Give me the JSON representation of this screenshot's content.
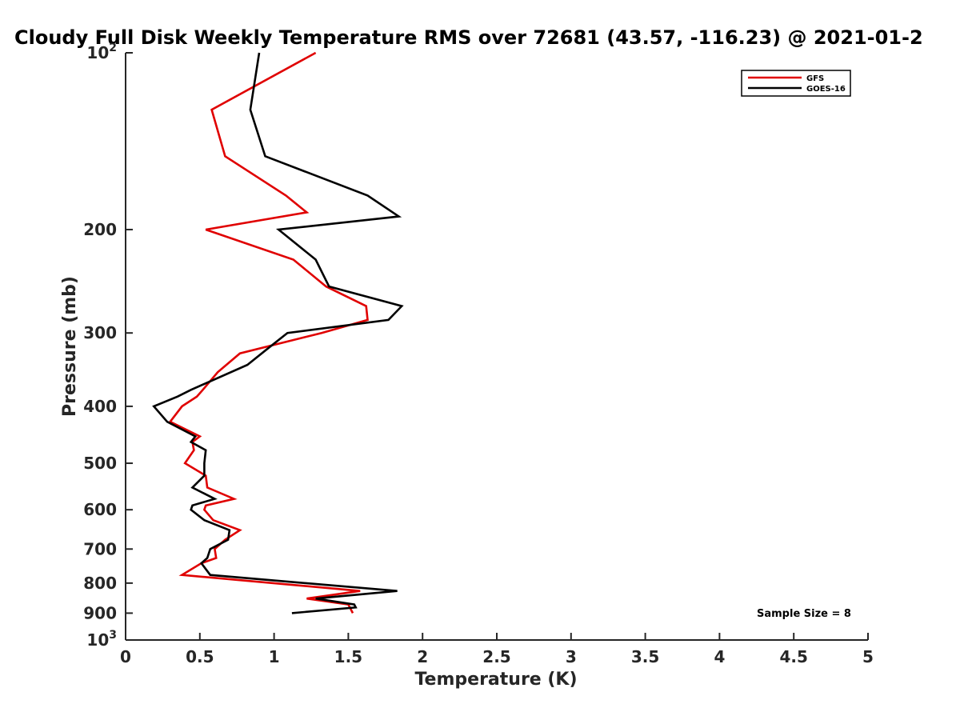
{
  "chart_data": {
    "type": "line",
    "title": "Cloudy Full Disk Weekly Temperature RMS over 72681 (43.57, -116.23) @ 2021-01-2",
    "xlabel": "Temperature (K)",
    "ylabel": "Pressure (mb)",
    "xlim": [
      0,
      5
    ],
    "ylim": [
      100,
      1000
    ],
    "yscale": "log",
    "y_reversed": true,
    "x_ticks": [
      "0",
      "0.5",
      "1",
      "1.5",
      "2",
      "2.5",
      "3",
      "3.5",
      "4",
      "4.5",
      "5"
    ],
    "y_ticks": [
      {
        "value": 100,
        "base": "10",
        "exp": "2"
      },
      {
        "value": 200,
        "label": "200"
      },
      {
        "value": 300,
        "label": "300"
      },
      {
        "value": 400,
        "label": "400"
      },
      {
        "value": 500,
        "label": "500"
      },
      {
        "value": 600,
        "label": "600"
      },
      {
        "value": 700,
        "label": "700"
      },
      {
        "value": 800,
        "label": "800"
      },
      {
        "value": 900,
        "label": "900"
      },
      {
        "value": 1000,
        "base": "10",
        "exp": "3"
      }
    ],
    "grid": false,
    "legend_position": "top-right",
    "annotation": "Sample Size = 8",
    "series": [
      {
        "name": "GFS",
        "color": "#e00000",
        "points": [
          [
            1.28,
            100
          ],
          [
            0.58,
            125
          ],
          [
            0.67,
            150
          ],
          [
            1.08,
            175
          ],
          [
            1.22,
            187
          ],
          [
            0.54,
            200
          ],
          [
            1.13,
            225
          ],
          [
            1.35,
            250
          ],
          [
            1.62,
            270
          ],
          [
            1.63,
            285
          ],
          [
            1.32,
            300
          ],
          [
            0.77,
            325
          ],
          [
            0.62,
            350
          ],
          [
            0.52,
            375
          ],
          [
            0.48,
            385
          ],
          [
            0.38,
            400
          ],
          [
            0.3,
            425
          ],
          [
            0.5,
            450
          ],
          [
            0.45,
            460
          ],
          [
            0.46,
            475
          ],
          [
            0.4,
            500
          ],
          [
            0.54,
            525
          ],
          [
            0.55,
            550
          ],
          [
            0.73,
            575
          ],
          [
            0.54,
            590
          ],
          [
            0.53,
            600
          ],
          [
            0.59,
            625
          ],
          [
            0.77,
            650
          ],
          [
            0.67,
            675
          ],
          [
            0.6,
            700
          ],
          [
            0.61,
            725
          ],
          [
            0.51,
            740
          ],
          [
            0.38,
            775
          ],
          [
            1.58,
            825
          ],
          [
            1.22,
            850
          ],
          [
            1.5,
            870
          ],
          [
            1.53,
            900
          ]
        ]
      },
      {
        "name": "GOES-16",
        "color": "#000000",
        "points": [
          [
            0.9,
            100
          ],
          [
            0.84,
            125
          ],
          [
            0.94,
            150
          ],
          [
            1.63,
            175
          ],
          [
            1.84,
            190
          ],
          [
            1.03,
            200
          ],
          [
            1.28,
            225
          ],
          [
            1.37,
            250
          ],
          [
            1.86,
            270
          ],
          [
            1.77,
            285
          ],
          [
            1.09,
            300
          ],
          [
            0.95,
            320
          ],
          [
            0.82,
            340
          ],
          [
            0.44,
            375
          ],
          [
            0.35,
            385
          ],
          [
            0.19,
            400
          ],
          [
            0.28,
            425
          ],
          [
            0.47,
            450
          ],
          [
            0.44,
            460
          ],
          [
            0.54,
            475
          ],
          [
            0.53,
            500
          ],
          [
            0.53,
            525
          ],
          [
            0.45,
            550
          ],
          [
            0.6,
            575
          ],
          [
            0.45,
            590
          ],
          [
            0.44,
            600
          ],
          [
            0.53,
            625
          ],
          [
            0.7,
            650
          ],
          [
            0.69,
            675
          ],
          [
            0.57,
            700
          ],
          [
            0.55,
            725
          ],
          [
            0.51,
            740
          ],
          [
            0.57,
            775
          ],
          [
            1.83,
            825
          ],
          [
            1.28,
            850
          ],
          [
            1.54,
            870
          ],
          [
            1.55,
            880
          ],
          [
            1.12,
            900
          ]
        ]
      }
    ]
  }
}
